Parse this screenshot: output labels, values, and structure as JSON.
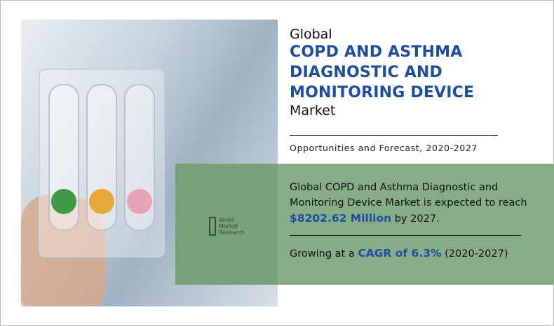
{
  "title": {
    "prefix": "Global",
    "main": [
      "COPD AND ASTHMA",
      "DIAGNOSTIC AND",
      "MONITORING DEVICE"
    ],
    "suffix": "Market"
  },
  "subtitle": "Opportunities and Forecast, 2020-2027",
  "summary": {
    "text_before": "Global COPD and Asthma Diagnostic and Monitoring Device Market is expected to reach ",
    "value": "$8202.62 Million",
    "text_after": " by 2027."
  },
  "cagr": {
    "text_before": "Growing at a ",
    "value": "CAGR of 6.3%",
    "text_after": " (2020-2027)"
  },
  "logo": {
    "lines": [
      "Allied",
      "Market",
      "Research"
    ]
  },
  "colors": {
    "accent": "#1f4ea0",
    "panel": "#86ad86"
  }
}
